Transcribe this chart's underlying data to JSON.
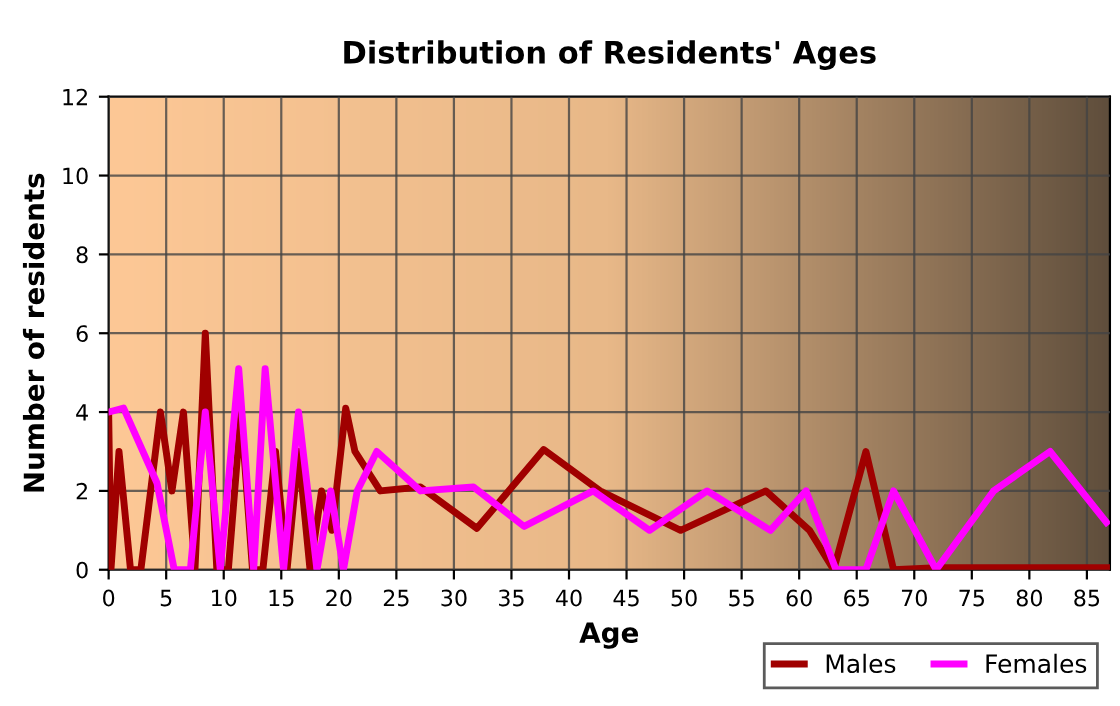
{
  "chart_data": {
    "type": "line",
    "title": "Distribution of Residents' Ages",
    "xlabel": "Age",
    "ylabel": "Number of residents",
    "xlim": [
      0,
      87
    ],
    "xticks": [
      0,
      5,
      10,
      15,
      20,
      25,
      30,
      35,
      40,
      45,
      50,
      55,
      60,
      65,
      70,
      75,
      80,
      85
    ],
    "ylim": [
      0,
      12
    ],
    "yticks": [
      0,
      2,
      4,
      6,
      8,
      10,
      12
    ],
    "grid": true,
    "legend": "bottom right",
    "line_style": "solid",
    "marker": "none",
    "series": [
      {
        "name": "Males",
        "color": "#a00000",
        "x": [
          0,
          0.2,
          0.9,
          1.9,
          2.8,
          4.5,
          5.5,
          6.5,
          7.5,
          8.4,
          9.4,
          10.4,
          11.5,
          12.5,
          13.4,
          14.5,
          15.5,
          16.5,
          17.5,
          18.5,
          19.4,
          20.6,
          21.4,
          23.6,
          27.1,
          32,
          37.8,
          42.7,
          49.7,
          57.1,
          60.9,
          63,
          65.8,
          68.2,
          72,
          87
        ],
        "values": [
          4,
          0,
          3,
          0,
          0,
          4,
          2,
          4,
          0,
          6,
          0,
          0,
          4,
          0,
          0,
          3,
          0,
          3,
          0,
          2,
          1,
          4.1,
          3,
          2,
          2.1,
          1.05,
          3.05,
          2,
          1,
          2,
          1,
          0,
          3,
          0,
          0.05,
          0.05
        ]
      },
      {
        "name": "Females",
        "color": "#ff00ff",
        "x": [
          0,
          1.3,
          4.2,
          5.7,
          7.1,
          8.4,
          9.7,
          11.3,
          12.6,
          13.6,
          15.2,
          16.5,
          18.1,
          19.3,
          20.4,
          21.6,
          23.3,
          27.1,
          31.7,
          36.1,
          42.1,
          47,
          52,
          57.5,
          60.6,
          63.2,
          65.8,
          68.2,
          71.9,
          76.9,
          81.8,
          86.7
        ],
        "values": [
          4,
          4.1,
          2.2,
          0,
          0,
          4,
          0,
          5.1,
          0,
          5.1,
          0,
          4,
          0,
          2,
          0,
          2,
          3,
          2,
          2.1,
          1.1,
          2,
          1,
          2,
          1,
          2,
          0,
          0,
          2,
          0,
          2,
          3,
          1.2
        ]
      }
    ]
  }
}
